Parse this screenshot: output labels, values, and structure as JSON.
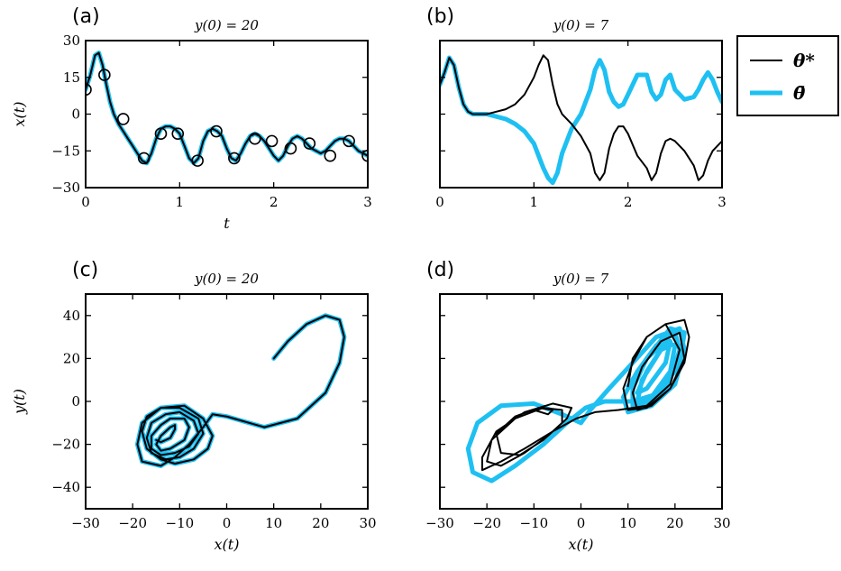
{
  "colors": {
    "theta_star": "#000000",
    "theta_bar": "#1ec0f2"
  },
  "legend": {
    "entries": [
      {
        "label": "θ*",
        "color": "#000000",
        "width": "thin"
      },
      {
        "label": "θ̄",
        "color": "#1ec0f2",
        "width": "thick"
      }
    ]
  },
  "chart_data": [
    {
      "panel": "(a)",
      "type": "line",
      "title": "y(0) = 20",
      "xlabel": "t",
      "ylabel": "x(t)",
      "xlim": [
        0,
        3
      ],
      "ylim": [
        -30,
        30
      ],
      "xticks": [
        0,
        1,
        2,
        3
      ],
      "yticks": [
        -30,
        -15,
        0,
        15,
        30
      ],
      "series": [
        {
          "style": "thick",
          "color": "#1ec0f2",
          "x": [
            0,
            0.05,
            0.1,
            0.14,
            0.18,
            0.22,
            0.26,
            0.3,
            0.35,
            0.4,
            0.45,
            0.5,
            0.55,
            0.6,
            0.65,
            0.7,
            0.75,
            0.8,
            0.85,
            0.9,
            0.95,
            1.0,
            1.05,
            1.1,
            1.15,
            1.2,
            1.25,
            1.3,
            1.35,
            1.4,
            1.45,
            1.5,
            1.55,
            1.6,
            1.65,
            1.7,
            1.75,
            1.8,
            1.85,
            1.9,
            1.95,
            2.0,
            2.05,
            2.1,
            2.15,
            2.2,
            2.25,
            2.3,
            2.35,
            2.4,
            2.45,
            2.5,
            2.55,
            2.6,
            2.65,
            2.7,
            2.75,
            2.8,
            2.85,
            2.9,
            2.95,
            3.0
          ],
          "y": [
            10,
            16,
            24,
            25,
            20,
            12,
            5,
            0,
            -4,
            -7,
            -10,
            -13,
            -16,
            -19,
            -20,
            -16,
            -10,
            -6,
            -5,
            -5,
            -6,
            -8,
            -13,
            -18,
            -20,
            -18,
            -11,
            -7,
            -6,
            -7,
            -9,
            -14,
            -18,
            -19,
            -16,
            -12,
            -9,
            -8,
            -9,
            -11,
            -14,
            -17,
            -19,
            -17,
            -13,
            -10,
            -9,
            -10,
            -12,
            -14,
            -15,
            -16,
            -15,
            -13,
            -11,
            -10,
            -10,
            -11,
            -13,
            -15,
            -16,
            -17
          ]
        },
        {
          "style": "thin",
          "color": "#000000",
          "x": [
            0,
            0.05,
            0.1,
            0.14,
            0.18,
            0.22,
            0.26,
            0.3,
            0.35,
            0.4,
            0.45,
            0.5,
            0.55,
            0.6,
            0.65,
            0.7,
            0.75,
            0.8,
            0.85,
            0.9,
            0.95,
            1.0,
            1.05,
            1.1,
            1.15,
            1.2,
            1.25,
            1.3,
            1.35,
            1.4,
            1.45,
            1.5,
            1.55,
            1.6,
            1.65,
            1.7,
            1.75,
            1.8,
            1.85,
            1.9,
            1.95,
            2.0,
            2.05,
            2.1,
            2.15,
            2.2,
            2.25,
            2.3,
            2.35,
            2.4,
            2.45,
            2.5,
            2.55,
            2.6,
            2.65,
            2.7,
            2.75,
            2.8,
            2.85,
            2.9,
            2.95,
            3.0
          ],
          "y": [
            10,
            16,
            24,
            25,
            20,
            12,
            5,
            0,
            -4,
            -7,
            -10,
            -13,
            -16,
            -19,
            -20,
            -16,
            -10,
            -6,
            -5,
            -5,
            -6,
            -8,
            -13,
            -18,
            -20,
            -18,
            -11,
            -7,
            -6,
            -7,
            -9,
            -14,
            -18,
            -19,
            -16,
            -12,
            -9,
            -8,
            -9,
            -11,
            -14,
            -17,
            -19,
            -17,
            -13,
            -10,
            -9,
            -10,
            -12,
            -14,
            -15,
            -16,
            -15,
            -13,
            -11,
            -10,
            -10,
            -11,
            -13,
            -15,
            -16,
            -17
          ]
        },
        {
          "style": "markers",
          "color": "#000000",
          "x": [
            0,
            0.2,
            0.4,
            0.62,
            0.8,
            0.98,
            1.19,
            1.39,
            1.58,
            1.8,
            1.98,
            2.18,
            2.38,
            2.6,
            2.8,
            3.0
          ],
          "y": [
            10,
            16,
            -2,
            -18,
            -8,
            -8,
            -19,
            -7,
            -18,
            -10,
            -11,
            -14,
            -12,
            -17,
            -11,
            -17
          ]
        }
      ]
    },
    {
      "panel": "(b)",
      "type": "line",
      "title": "y(0) = 7",
      "xlim": [
        0,
        3
      ],
      "ylim": [
        -30,
        30
      ],
      "xticks": [
        0,
        1,
        2,
        3
      ],
      "yticks": [
        -30,
        -15,
        0,
        15,
        30
      ],
      "series": [
        {
          "style": "thick",
          "color": "#1ec0f2",
          "x": [
            0,
            0.05,
            0.1,
            0.15,
            0.2,
            0.25,
            0.3,
            0.35,
            0.4,
            0.5,
            0.6,
            0.7,
            0.8,
            0.9,
            1.0,
            1.05,
            1.1,
            1.15,
            1.2,
            1.25,
            1.3,
            1.4,
            1.5,
            1.6,
            1.65,
            1.7,
            1.75,
            1.8,
            1.85,
            1.9,
            1.95,
            2.0,
            2.1,
            2.2,
            2.25,
            2.3,
            2.35,
            2.4,
            2.45,
            2.5,
            2.6,
            2.7,
            2.75,
            2.8,
            2.85,
            2.9,
            2.95,
            3.0
          ],
          "y": [
            12,
            17,
            23,
            20,
            11,
            4,
            1,
            0,
            0,
            0,
            -1,
            -2,
            -4,
            -7,
            -12,
            -17,
            -22,
            -26,
            -28,
            -24,
            -16,
            -6,
            0,
            10,
            18,
            22,
            18,
            9,
            5,
            3,
            4,
            8,
            16,
            16,
            9,
            6,
            8,
            14,
            16,
            10,
            6,
            7,
            10,
            14,
            17,
            14,
            9,
            5
          ]
        },
        {
          "style": "thin",
          "color": "#000000",
          "x": [
            0,
            0.05,
            0.1,
            0.15,
            0.2,
            0.25,
            0.3,
            0.35,
            0.4,
            0.5,
            0.6,
            0.7,
            0.8,
            0.9,
            1.0,
            1.05,
            1.1,
            1.15,
            1.2,
            1.25,
            1.3,
            1.4,
            1.5,
            1.6,
            1.65,
            1.7,
            1.75,
            1.8,
            1.85,
            1.9,
            1.95,
            2.0,
            2.1,
            2.2,
            2.25,
            2.3,
            2.35,
            2.4,
            2.45,
            2.5,
            2.6,
            2.7,
            2.75,
            2.8,
            2.85,
            2.9,
            2.95,
            3.0
          ],
          "y": [
            12,
            17,
            23,
            20,
            11,
            4,
            1,
            0,
            0,
            0,
            1,
            2,
            4,
            8,
            15,
            20,
            24,
            22,
            12,
            4,
            0,
            -4,
            -9,
            -16,
            -24,
            -27,
            -24,
            -14,
            -8,
            -5,
            -5,
            -8,
            -17,
            -22,
            -27,
            -24,
            -16,
            -11,
            -10,
            -11,
            -15,
            -21,
            -27,
            -25,
            -19,
            -15,
            -13,
            -11
          ]
        }
      ]
    },
    {
      "panel": "(c)",
      "type": "line",
      "title": "y(0) = 20",
      "xlabel": "x(t)",
      "ylabel": "y(t)",
      "xlim": [
        -30,
        30
      ],
      "ylim": [
        -50,
        50
      ],
      "xticks": [
        -30,
        -20,
        -10,
        0,
        10,
        20,
        30
      ],
      "yticks": [
        -40,
        -20,
        0,
        20,
        40
      ],
      "series": [
        {
          "style": "thick",
          "color": "#1ec0f2",
          "kind": "phase",
          "x": [
            10,
            13,
            17,
            21,
            24,
            25,
            24,
            21,
            15,
            8,
            0,
            -3,
            -5,
            -8,
            -11,
            -14,
            -18,
            -19,
            -18,
            -14,
            -9,
            -5,
            -3,
            -4,
            -7,
            -11,
            -14,
            -17,
            -18,
            -17,
            -14,
            -10,
            -6,
            -5,
            -7,
            -10,
            -13,
            -16,
            -17,
            -16,
            -13,
            -10,
            -7,
            -6,
            -8,
            -11,
            -14,
            -16,
            -16,
            -14,
            -12,
            -9,
            -8,
            -9,
            -12,
            -14,
            -15,
            -14,
            -12,
            -11,
            -11,
            -12,
            -14,
            -15
          ],
          "y": [
            20,
            28,
            36,
            40,
            38,
            30,
            18,
            4,
            -8,
            -12,
            -7,
            -6,
            -12,
            -20,
            -26,
            -30,
            -28,
            -20,
            -10,
            -3,
            -2,
            -8,
            -16,
            -22,
            -27,
            -29,
            -27,
            -22,
            -14,
            -7,
            -3,
            -3,
            -8,
            -15,
            -22,
            -26,
            -27,
            -24,
            -17,
            -10,
            -6,
            -5,
            -9,
            -15,
            -21,
            -24,
            -25,
            -22,
            -16,
            -11,
            -8,
            -8,
            -12,
            -18,
            -22,
            -23,
            -20,
            -16,
            -12,
            -11,
            -13,
            -17,
            -19,
            -18
          ]
        },
        {
          "style": "thin",
          "color": "#000000",
          "kind": "phase",
          "x": [
            10,
            13,
            17,
            21,
            24,
            25,
            24,
            21,
            15,
            8,
            0,
            -3,
            -5,
            -8,
            -11,
            -14,
            -18,
            -19,
            -18,
            -14,
            -9,
            -5,
            -3,
            -4,
            -7,
            -11,
            -14,
            -17,
            -18,
            -17,
            -14,
            -10,
            -6,
            -5,
            -7,
            -10,
            -13,
            -16,
            -17,
            -16,
            -13,
            -10,
            -7,
            -6,
            -8,
            -11,
            -14,
            -16,
            -16,
            -14,
            -12,
            -9,
            -8,
            -9,
            -12,
            -14,
            -15,
            -14,
            -12,
            -11,
            -11,
            -12,
            -14,
            -15
          ],
          "y": [
            20,
            28,
            36,
            40,
            38,
            30,
            18,
            4,
            -8,
            -12,
            -7,
            -6,
            -12,
            -20,
            -26,
            -30,
            -28,
            -20,
            -10,
            -3,
            -2,
            -8,
            -16,
            -22,
            -27,
            -29,
            -27,
            -22,
            -14,
            -7,
            -3,
            -3,
            -8,
            -15,
            -22,
            -26,
            -27,
            -24,
            -17,
            -10,
            -6,
            -5,
            -9,
            -15,
            -21,
            -24,
            -25,
            -22,
            -16,
            -11,
            -8,
            -8,
            -12,
            -18,
            -22,
            -23,
            -20,
            -16,
            -12,
            -11,
            -13,
            -17,
            -19,
            -18
          ]
        }
      ]
    },
    {
      "panel": "(d)",
      "type": "line",
      "title": "y(0) = 7",
      "xlabel": "x(t)",
      "xlim": [
        -30,
        30
      ],
      "ylim": [
        -50,
        50
      ],
      "xticks": [
        -30,
        -20,
        -10,
        0,
        10,
        20,
        30
      ],
      "yticks": [
        -40,
        -20,
        0,
        20,
        40
      ],
      "series": [
        {
          "style": "thick",
          "color": "#1ec0f2",
          "kind": "phase",
          "x": [
            10,
            14,
            19,
            22,
            21,
            17,
            11,
            5,
            1,
            -3,
            -8,
            -14,
            -19,
            -23,
            -24,
            -22,
            -17,
            -10,
            -4,
            0,
            2,
            6,
            11,
            16,
            21,
            22,
            20,
            15,
            10,
            9,
            12,
            16,
            20,
            21,
            19,
            15,
            11,
            11,
            14,
            18,
            20,
            19,
            15,
            12,
            13,
            17,
            19,
            18,
            14,
            12,
            14,
            17,
            19
          ],
          "y": [
            7,
            20,
            34,
            32,
            18,
            4,
            0,
            0,
            -3,
            -10,
            -20,
            -30,
            -37,
            -33,
            -22,
            -10,
            -2,
            -1,
            -6,
            -10,
            -4,
            6,
            18,
            30,
            34,
            24,
            8,
            -2,
            -5,
            2,
            14,
            26,
            32,
            24,
            10,
            0,
            -2,
            6,
            20,
            28,
            26,
            14,
            2,
            0,
            10,
            24,
            28,
            18,
            6,
            4,
            14,
            24,
            26
          ]
        },
        {
          "style": "thin",
          "color": "#000000",
          "kind": "phase",
          "x": [
            10,
            11,
            14,
            18,
            22,
            23,
            22,
            19,
            15,
            12,
            11,
            13,
            17,
            21,
            22,
            19,
            14,
            10,
            9,
            11,
            14,
            18,
            21,
            19,
            14,
            8,
            3,
            -1,
            -6,
            -12,
            -17,
            -21,
            -21,
            -18,
            -12,
            -6,
            -2,
            -3,
            -7,
            -12,
            -17,
            -20,
            -19,
            -14,
            -8,
            -4,
            -4,
            -8,
            -13,
            -17,
            -18,
            -14,
            -9,
            -6,
            -7,
            -10
          ],
          "y": [
            7,
            20,
            30,
            36,
            38,
            30,
            18,
            6,
            -2,
            -4,
            4,
            16,
            28,
            32,
            20,
            6,
            -3,
            -4,
            6,
            18,
            30,
            36,
            24,
            8,
            -2,
            -4,
            -5,
            -8,
            -14,
            -22,
            -28,
            -32,
            -26,
            -14,
            -5,
            -1,
            -3,
            -8,
            -16,
            -24,
            -30,
            -28,
            -18,
            -8,
            -3,
            -4,
            -10,
            -18,
            -25,
            -24,
            -15,
            -7,
            -3,
            -4,
            -6,
            -4
          ]
        }
      ]
    }
  ]
}
